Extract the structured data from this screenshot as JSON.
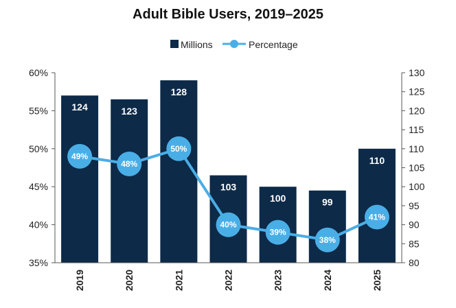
{
  "chart_data": {
    "type": "bar",
    "title": "Adult Bible Users, 2019–2025",
    "categories": [
      "2019",
      "2020",
      "2021",
      "2022",
      "2023",
      "2024",
      "2025"
    ],
    "series": [
      {
        "name": "Millions",
        "kind": "bar",
        "axis": "right",
        "color": "#0d2a48",
        "values": [
          124,
          123,
          128,
          103,
          100,
          99,
          110
        ],
        "labels": [
          "124",
          "123",
          "128",
          "103",
          "100",
          "99",
          "110"
        ]
      },
      {
        "name": "Percentage",
        "kind": "line",
        "axis": "left",
        "color": "#4aaee6",
        "values": [
          49,
          48,
          50,
          40,
          39,
          38,
          41
        ],
        "labels": [
          "49%",
          "48%",
          "50%",
          "40%",
          "39%",
          "38%",
          "41%"
        ]
      }
    ],
    "y_left": {
      "range": [
        35,
        60
      ],
      "ticks": [
        "35%",
        "40%",
        "45%",
        "50%",
        "55%",
        "60%"
      ]
    },
    "y_right": {
      "range": [
        80,
        130
      ],
      "ticks": [
        "80",
        "85",
        "90",
        "95",
        "100",
        "105",
        "110",
        "115",
        "120",
        "125",
        "130"
      ]
    },
    "legend_position": "top-center",
    "grid": false
  }
}
